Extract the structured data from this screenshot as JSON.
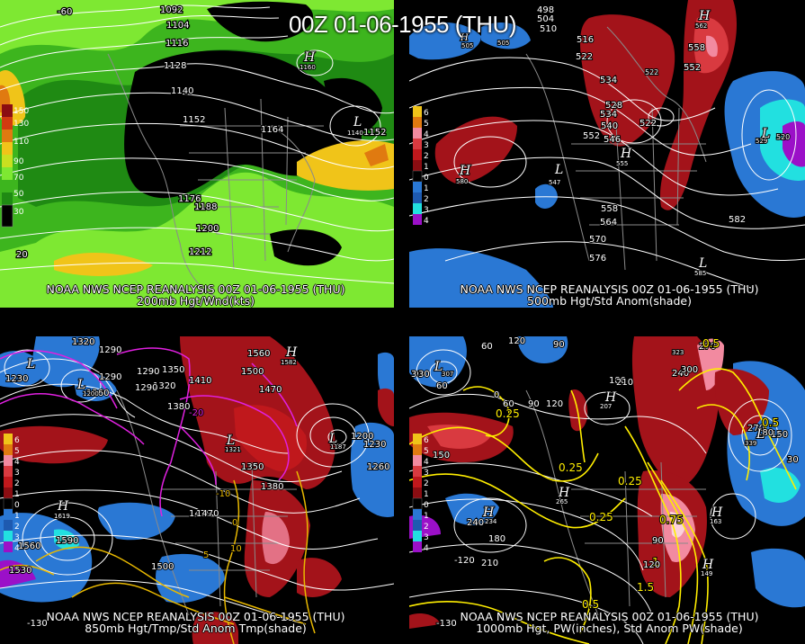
{
  "title": "00Z 01-06-1955 (THU)",
  "panels": {
    "top_left": {
      "caption_line1": "NOAA NWS NCEP REANALYSIS 00Z 01-06-1955 (THU)",
      "caption_line2": "200mb Hgt/Wnd(kts)",
      "legend": [
        "150",
        "130",
        "110",
        "90",
        "70",
        "50",
        "30"
      ],
      "contour_labels": [
        "1092",
        "1104",
        "1116",
        "1128",
        "1140",
        "1152",
        "1164",
        "1176",
        "1188",
        "1200",
        "1212",
        "1152",
        "1140"
      ],
      "axis_labels": [
        "-60",
        "20"
      ],
      "markers": [
        "H",
        "L"
      ],
      "marker_values": [
        "1160",
        "1140"
      ]
    },
    "top_right": {
      "caption_line1": "NOAA NWS NCEP REANALYSIS 00Z 01-06-1955 (THU)",
      "caption_line2": "500mb Hgt/Std Anom(shade)",
      "legend": [
        "6",
        "5",
        "4",
        "3",
        "2",
        "1",
        "0",
        "1",
        "2",
        "3",
        "4",
        "5"
      ],
      "contour_labels": [
        "498",
        "504",
        "510",
        "516",
        "522",
        "528",
        "534",
        "540",
        "546",
        "552",
        "522",
        "558",
        "552",
        "534",
        "558",
        "564",
        "570",
        "576",
        "582"
      ],
      "markers": [
        "H",
        "L",
        "H",
        "L",
        "L",
        "H",
        "H"
      ],
      "marker_values": [
        "505",
        "505",
        "562",
        "580",
        "547",
        "555",
        "529",
        "585",
        "520"
      ]
    },
    "bottom_left": {
      "caption_line1": "NOAA NWS NCEP REANALYSIS 00Z 01-06-1955 (THU)",
      "caption_line2": "850mb Hgt/Tmp/Std Anom Tmp(shade)",
      "legend": [
        "6",
        "5",
        "4",
        "3",
        "2",
        "1",
        "0",
        "1",
        "2",
        "3",
        "4",
        "5"
      ],
      "contour_labels": [
        "1320",
        "1290",
        "1230",
        "1260",
        "1290",
        "1320",
        "1350",
        "1380",
        "1410",
        "1470",
        "1560",
        "1500",
        "1470",
        "1350",
        "1380",
        "1470",
        "1590",
        "1530",
        "1500",
        "1560",
        "1290",
        "1290",
        "1230",
        "1260",
        "1200",
        "-20",
        "-10",
        "0",
        "10",
        "5"
      ],
      "markers": [
        "L",
        "L",
        "H",
        "L",
        "H",
        "L"
      ],
      "marker_values": [
        "1200",
        "1321",
        "1619",
        "1582",
        "1187"
      ],
      "axis_labels": [
        "-130"
      ]
    },
    "bottom_right": {
      "caption_line1": "NOAA NWS NCEP REANALYSIS 00Z 01-06-1955 (THU)",
      "caption_line2": "1000mb Hgt, PW(inches), Std Anom PW(shade)",
      "legend": [
        "6",
        "5",
        "4",
        "3",
        "2",
        "1",
        "0",
        "1",
        "2",
        "3",
        "4",
        "5"
      ],
      "contour_labels": [
        "120",
        "60",
        "90",
        "30",
        "60",
        "180",
        "210",
        "240",
        "270",
        "150",
        "0",
        "60",
        "90",
        "120",
        "180",
        "210",
        "240",
        "270",
        "300",
        "150",
        "-120",
        "0.5",
        "0.25",
        "0.25",
        "0.25",
        "0.25",
        "0.5",
        "1",
        "1.5",
        "0.5",
        "0.75",
        "30",
        "180",
        "90",
        "120",
        "30"
      ],
      "markers": [
        "L",
        "H",
        "H",
        "H",
        "L",
        "H",
        "H"
      ],
      "marker_values": [
        "307",
        "207",
        "265",
        "234",
        "339",
        "163",
        "149",
        "323"
      ],
      "axis_labels": [
        "-130"
      ]
    }
  },
  "colors": {
    "background": "#000000",
    "wind_light_green": "#7ee832",
    "wind_green": "#3db51e",
    "wind_dark_green": "#1f8a13",
    "wind_yellow": "#f0c419",
    "wind_orange": "#e07a10",
    "anom_red": "#c0181c",
    "anom_dark_red": "#8b0d12",
    "anom_pink": "#f28aa0",
    "anom_blue": "#2a78d4",
    "anom_cyan": "#22e0e0",
    "anom_purple": "#9b10c8",
    "temp_magenta": "#e020e0",
    "temp_yellow": "#e8c800",
    "pw_yellow": "#ffee00",
    "contour_white": "#ffffff",
    "map_gray": "#8a8a8a"
  }
}
